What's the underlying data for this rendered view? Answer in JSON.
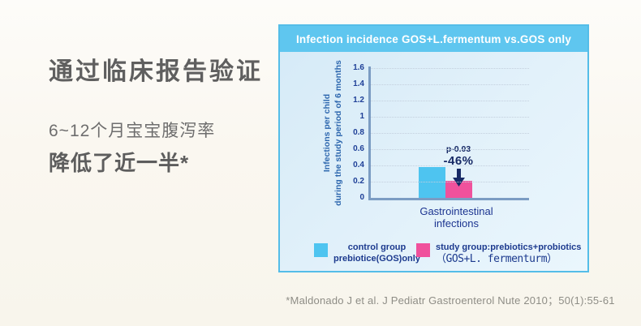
{
  "left_panel": {
    "title": "通过临床报告验证",
    "line1": "6~12个月宝宝腹泻率",
    "line2": "降低了近一半*"
  },
  "chart_panel": {
    "ylabel_line1": "Infections per child",
    "ylabel_line2": "during the study period of 6 months",
    "category_line1": "Gastrointestinal",
    "category_line2": "infections"
  },
  "chart_data": {
    "type": "bar",
    "title": "Infection incidence GOS+L.fermentum vs.GOS only",
    "categories": [
      "Gastrointestinal infections"
    ],
    "series": [
      {
        "name": "control group prebiotice(GOS)only",
        "values": [
          0.38
        ],
        "color": "#4ec4f0"
      },
      {
        "name": "study group:prebiotics+probiotics（GOS+L.fermenturm）",
        "values": [
          0.21
        ],
        "color": "#f0519c"
      }
    ],
    "ylabel": "Infections per child during the study period of 6 months",
    "xlabel": "",
    "ylim": [
      0,
      1.6
    ],
    "yticks": [
      1.6,
      1.4,
      1.2,
      1,
      0.8,
      0.6,
      0.4,
      0.2,
      0
    ],
    "grid": "dotted-horizontal",
    "legend_position": "bottom",
    "annotation": {
      "p_value": "p-0.03",
      "change": "-46%",
      "target": "study-group-bar"
    }
  },
  "legend": {
    "control": {
      "line1": "control group",
      "line2": "prebiotice(GOS)only"
    },
    "study": {
      "line1": "study group:prebiotics+probiotics",
      "line2": "（GOS+L. fermenturm）"
    }
  },
  "footnote": "*Maldonado J et al. J Pediatr Gastroenterol Nute 2010；50(1):55-61",
  "colors": {
    "panel_header": "#5fc6ef",
    "panel_border": "#54bde8",
    "panel_background_start": "#d5eaf7",
    "panel_background_end": "#eaf6fd",
    "page_background": "#faf7f0",
    "axis": "#7b9cc3",
    "tick_text": "#1e3f97",
    "annotation_text": "#172a66",
    "control_bar": "#4ec4f0",
    "study_bar": "#f0519c"
  }
}
